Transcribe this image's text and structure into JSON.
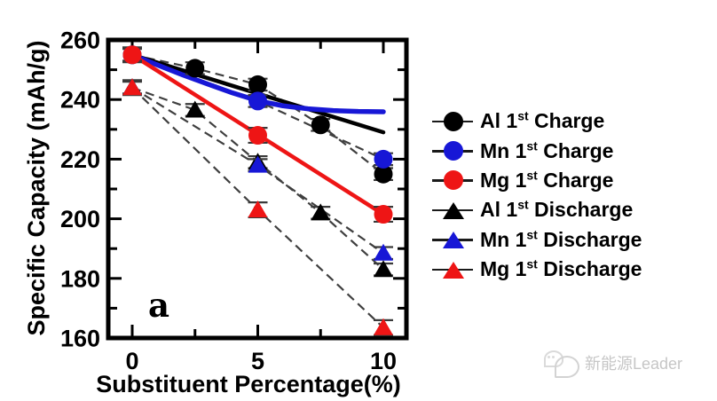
{
  "chart_data": {
    "type": "scatter",
    "title": "",
    "xlabel": "Substituent Percentage(%)",
    "ylabel": "Specific Capacity (mAh/g)",
    "panel_label": "a",
    "xlim": [
      -1,
      11
    ],
    "ylim": [
      160,
      260
    ],
    "grid": false,
    "legend_position": "right-outside",
    "dash_color": "#3f3f3f",
    "error_color": "#3a3a3a",
    "frame_color": "#000000",
    "xticks": {
      "major": [
        0,
        5,
        10
      ],
      "minor": [
        2.5,
        7.5
      ],
      "labels": [
        "0",
        "5",
        "10"
      ]
    },
    "yticks": {
      "major": [
        260,
        240,
        220,
        200,
        180,
        160
      ],
      "minor": [
        250,
        230,
        210,
        190,
        170
      ],
      "labels": [
        "260",
        "240",
        "220",
        "200",
        "180",
        "160"
      ]
    },
    "series": [
      {
        "name": "Al 1st Charge",
        "marker": "circle",
        "color": "#000000",
        "x": [
          0,
          2.5,
          5,
          7.5,
          10
        ],
        "y": [
          255,
          250.5,
          245,
          231.5,
          215
        ],
        "yerr": 2
      },
      {
        "name": "Mn 1st Charge",
        "marker": "circle",
        "color": "#1717d6",
        "x": [
          0,
          5,
          10
        ],
        "y": [
          255,
          239.5,
          220
        ],
        "yerr": 2
      },
      {
        "name": "Mg 1st Charge",
        "marker": "circle",
        "color": "#ee1515",
        "x": [
          0,
          5,
          10
        ],
        "y": [
          255,
          228,
          201.5
        ],
        "yerr": 2.5
      },
      {
        "name": "Al 1st Discharge",
        "marker": "triangle",
        "color": "#000000",
        "x": [
          0,
          2.5,
          5,
          7.5,
          10
        ],
        "y": [
          244,
          236.5,
          219,
          202,
          183
        ],
        "yerr": 2
      },
      {
        "name": "Mn 1st Discharge",
        "marker": "triangle",
        "color": "#1717d6",
        "x": [
          0,
          5,
          10
        ],
        "y": [
          244,
          218,
          188.5
        ],
        "yerr": 2
      },
      {
        "name": "Mg 1st Discharge",
        "marker": "triangle",
        "color": "#ee1515",
        "x": [
          0,
          5,
          10
        ],
        "y": [
          244,
          203,
          163.5
        ],
        "yerr": 2.5
      }
    ],
    "fit_lines": [
      {
        "name": "Al charge fit",
        "color": "#000000",
        "width": 4.5,
        "points": [
          [
            0,
            255
          ],
          [
            10,
            229
          ]
        ]
      },
      {
        "name": "Mn charge fit",
        "color": "#1717d6",
        "width": 5.5,
        "points": [
          [
            0,
            255
          ],
          [
            1,
            251.6
          ],
          [
            2,
            248.3
          ],
          [
            3,
            245.2
          ],
          [
            4,
            242.2
          ],
          [
            5,
            239.6
          ],
          [
            6,
            237.9
          ],
          [
            7,
            236.9
          ],
          [
            8,
            236.3
          ],
          [
            9,
            236.0
          ],
          [
            10,
            235.9
          ]
        ]
      },
      {
        "name": "Mg charge fit",
        "color": "#ee1515",
        "width": 4.5,
        "points": [
          [
            0,
            255
          ],
          [
            10,
            201.5
          ]
        ]
      }
    ]
  },
  "legend": {
    "items": [
      {
        "pre": "Al 1",
        "sup": "st",
        "post": " Charge",
        "marker": "circle",
        "color": "#000000"
      },
      {
        "pre": "Mn 1",
        "sup": "st",
        "post": " Charge",
        "marker": "circle",
        "color": "#1717d6"
      },
      {
        "pre": "Mg 1",
        "sup": "st",
        "post": " Charge",
        "marker": "circle",
        "color": "#ee1515"
      },
      {
        "pre": "Al 1",
        "sup": "st",
        "post": " Discharge",
        "marker": "triangle",
        "color": "#000000"
      },
      {
        "pre": "Mn 1",
        "sup": "st",
        "post": " Discharge",
        "marker": "triangle",
        "color": "#1717d6"
      },
      {
        "pre": "Mg 1",
        "sup": "st",
        "post": " Discharge",
        "marker": "triangle",
        "color": "#ee1515"
      }
    ]
  },
  "watermark": {
    "text": "新能源Leader"
  }
}
